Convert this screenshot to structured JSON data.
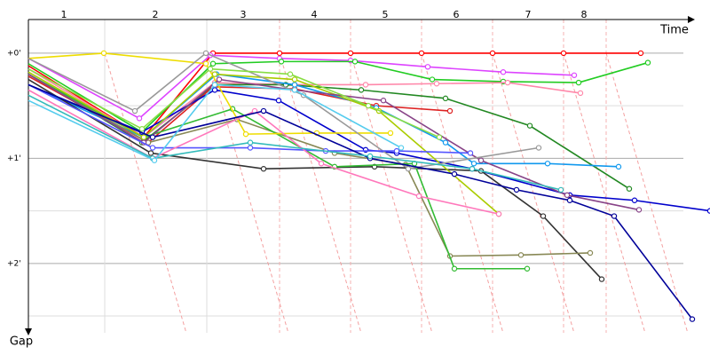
{
  "chart_data": {
    "type": "line",
    "x_label": "Time",
    "y_label": "Gap",
    "xlim": [
      0,
      768
    ],
    "ylim": [
      -0.32,
      2.66
    ],
    "xticks": [
      {
        "value": 40,
        "label": "1"
      },
      {
        "value": 143,
        "label": "2"
      },
      {
        "value": 242,
        "label": "3"
      },
      {
        "value": 322,
        "label": "4"
      },
      {
        "value": 402,
        "label": "5"
      },
      {
        "value": 482,
        "label": "6"
      },
      {
        "value": 563,
        "label": "7"
      },
      {
        "value": 626,
        "label": "8"
      }
    ],
    "xgrid": [
      86,
      201,
      283,
      363,
      443,
      523,
      603,
      651
    ],
    "yticks": [
      {
        "value": 0,
        "label": "+0'"
      },
      {
        "value": 1,
        "label": "+1'"
      },
      {
        "value": 2,
        "label": "+2'"
      }
    ],
    "minor_yticks": [
      0.5,
      1.5,
      2.5
    ],
    "series": [
      {
        "color": "#ff0000",
        "x": [
          0,
          130,
          208,
          283,
          363,
          443,
          523,
          603,
          690
        ],
        "values": [
          0.12,
          0.8,
          0,
          0,
          0,
          0,
          0,
          0,
          0
        ]
      },
      {
        "color": "#dd44ff",
        "x": [
          0,
          125,
          205,
          283,
          363,
          450,
          535,
          615
        ],
        "values": [
          0.05,
          0.62,
          0.02,
          0.05,
          0.07,
          0.13,
          0.18,
          0.21
        ]
      },
      {
        "color": "#22cc22",
        "x": [
          0,
          128,
          208,
          285,
          368,
          455,
          535,
          620,
          698
        ],
        "values": [
          0.1,
          0.75,
          0.1,
          0.08,
          0.08,
          0.25,
          0.27,
          0.28,
          0.09
        ]
      },
      {
        "color": "#ff88aa",
        "x": [
          0,
          130,
          210,
          300,
          380,
          460,
          540,
          622
        ],
        "values": [
          0.15,
          0.8,
          0.28,
          0.3,
          0.3,
          0.29,
          0.28,
          0.38
        ]
      },
      {
        "color": "#228822",
        "x": [
          0,
          128,
          210,
          290,
          375,
          470,
          565,
          677
        ],
        "values": [
          0.2,
          0.85,
          0.3,
          0.3,
          0.35,
          0.43,
          0.69,
          1.29
        ]
      },
      {
        "color": "#dd2222",
        "x": [
          0,
          135,
          208,
          300,
          392,
          475
        ],
        "values": [
          0.22,
          0.85,
          0.32,
          0.34,
          0.5,
          0.55
        ]
      },
      {
        "color": "#0000cc",
        "x": [
          0,
          128,
          210,
          282,
          380,
          415,
          500,
          610,
          683,
          768
        ],
        "values": [
          0.3,
          0.75,
          0.35,
          0.45,
          0.92,
          0.95,
          1.1,
          1.35,
          1.4,
          1.5
        ]
      },
      {
        "color": "#1199ee",
        "x": [
          0,
          130,
          212,
          300,
          392,
          470,
          502,
          585,
          665
        ],
        "values": [
          0.3,
          0.8,
          0.2,
          0.3,
          0.52,
          0.85,
          1.05,
          1.05,
          1.08
        ]
      },
      {
        "color": "#333333",
        "x": [
          0,
          138,
          265,
          390,
          510,
          580,
          646
        ],
        "values": [
          0.25,
          0.95,
          1.1,
          1.08,
          1.12,
          1.55,
          2.15
        ]
      },
      {
        "color": "#888855",
        "x": [
          0,
          135,
          235,
          345,
          425,
          475,
          555,
          633
        ],
        "values": [
          0.2,
          0.85,
          0.63,
          0.95,
          1.06,
          1.93,
          1.92,
          1.9
        ]
      },
      {
        "color": "#33bb33",
        "x": [
          0,
          130,
          230,
          345,
          435,
          480,
          562
        ],
        "values": [
          0.2,
          0.8,
          0.53,
          1.08,
          1.05,
          2.05,
          2.05
        ]
      },
      {
        "color": "#eedd00",
        "x": [
          0,
          85,
          200,
          245,
          325,
          408
        ],
        "values": [
          0.05,
          0,
          0.1,
          0.77,
          0.76,
          0.76
        ]
      },
      {
        "color": "#aacc00",
        "x": [
          0,
          130,
          210,
          300,
          395,
          530
        ],
        "values": [
          0.18,
          0.8,
          0.2,
          0.25,
          0.55,
          1.53
        ]
      },
      {
        "color": "#884488",
        "x": [
          0,
          130,
          215,
          300,
          400,
          510,
          607,
          688
        ],
        "values": [
          0.2,
          0.85,
          0.25,
          0.35,
          0.45,
          1.02,
          1.35,
          1.49
        ]
      },
      {
        "color": "#999999",
        "x": [
          0,
          120,
          200,
          310,
          428,
          575
        ],
        "values": [
          0.05,
          0.55,
          0,
          0.4,
          1.1,
          0.9
        ]
      },
      {
        "color": "#5555ff",
        "x": [
          0,
          140,
          250,
          335,
          415,
          498
        ],
        "values": [
          0.3,
          0.9,
          0.9,
          0.93,
          0.93,
          0.95
        ]
      },
      {
        "color": "#ff77bb",
        "x": [
          0,
          140,
          255,
          330,
          440,
          530
        ],
        "values": [
          0.35,
          1,
          0.55,
          1.05,
          1.36,
          1.53
        ]
      },
      {
        "color": "#000099",
        "x": [
          0,
          140,
          265,
          385,
          480,
          550,
          610,
          660,
          748
        ],
        "values": [
          0.3,
          0.8,
          0.55,
          1,
          1.15,
          1.3,
          1.4,
          1.55,
          2.53
        ]
      },
      {
        "color": "#33bbbb",
        "x": [
          0,
          140,
          250,
          385,
          500,
          600
        ],
        "values": [
          0.4,
          1,
          0.85,
          0.98,
          1.1,
          1.3
        ]
      },
      {
        "color": "#88dd44",
        "x": [
          0,
          128,
          205,
          295,
          383,
          463
        ],
        "values": [
          0.15,
          0.72,
          0.15,
          0.2,
          0.5,
          0.8
        ]
      },
      {
        "color": "#55ccee",
        "x": [
          0,
          142,
          210,
          300,
          420
        ],
        "values": [
          0.45,
          1.02,
          0.3,
          0.35,
          0.9
        ]
      }
    ]
  }
}
